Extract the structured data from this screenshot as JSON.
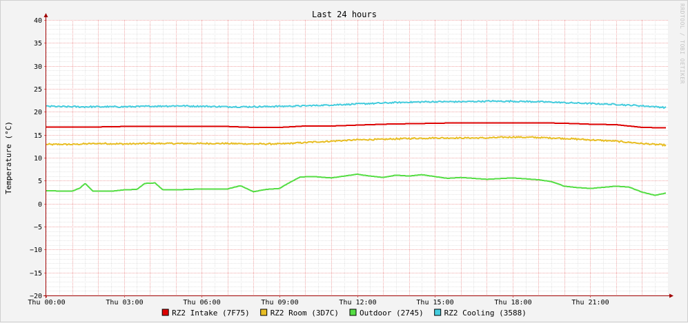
{
  "chart_data": {
    "type": "line",
    "title": "Last 24 hours",
    "ylabel": "Temperature (°C)",
    "watermark": "RRDTOOL / TOBI OETIKER",
    "ylim": [
      -20,
      40
    ],
    "yticks": [
      -20,
      -15,
      -10,
      -5,
      0,
      5,
      10,
      15,
      20,
      25,
      30,
      35,
      40
    ],
    "xlim": [
      0,
      24
    ],
    "xtick_labels": [
      "Thu 00:00",
      "Thu 03:00",
      "Thu 06:00",
      "Thu 09:00",
      "Thu 12:00",
      "Thu 15:00",
      "Thu 18:00",
      "Thu 21:00"
    ],
    "xtick_hours": [
      0,
      3,
      6,
      9,
      12,
      15,
      18,
      21
    ],
    "grid": true,
    "legend_position": "bottom",
    "series": [
      {
        "name": "RZ2 Intake (7F75)",
        "color": "#dd0000",
        "x": [
          0,
          1,
          2,
          3,
          4,
          5,
          6,
          7,
          8,
          9,
          10,
          11,
          12,
          13,
          14,
          15,
          16,
          17,
          18,
          19,
          20,
          21,
          22,
          23,
          24
        ],
        "y": [
          16.7,
          16.7,
          16.7,
          16.8,
          16.8,
          16.8,
          16.8,
          16.8,
          16.6,
          16.6,
          16.9,
          16.9,
          17.1,
          17.3,
          17.4,
          17.5,
          17.6,
          17.6,
          17.6,
          17.6,
          17.5,
          17.3,
          17.2,
          16.6,
          16.5
        ]
      },
      {
        "name": "RZ2 Room (3D7C)",
        "color": "#e8be25",
        "x": [
          0,
          1,
          2,
          3,
          4,
          5,
          6,
          7,
          8,
          9,
          10,
          11,
          12,
          13,
          14,
          15,
          16,
          17,
          18,
          19,
          20,
          21,
          22,
          23,
          24
        ],
        "y": [
          12.9,
          12.9,
          13.1,
          13.0,
          13.1,
          13.1,
          13.1,
          13.1,
          13.0,
          13.0,
          13.3,
          13.6,
          13.9,
          14.0,
          14.2,
          14.3,
          14.3,
          14.3,
          14.5,
          14.4,
          14.2,
          13.9,
          13.6,
          13.1,
          12.7
        ]
      },
      {
        "name": "Outdoor (2745)",
        "color": "#55dd44",
        "x": [
          0,
          1,
          1.3,
          1.5,
          1.8,
          2.5,
          3,
          3.5,
          3.8,
          4.2,
          4.5,
          5,
          6,
          7,
          7.5,
          8,
          8.5,
          9,
          9.3,
          9.8,
          10.3,
          11,
          11.5,
          12,
          12.5,
          13,
          13.5,
          14,
          14.5,
          15,
          15.5,
          16,
          17,
          18,
          19,
          19.5,
          20,
          20.5,
          21,
          22,
          22.5,
          23,
          23.5,
          24
        ],
        "y": [
          2.8,
          2.7,
          3.4,
          4.4,
          2.7,
          2.7,
          3.0,
          3.1,
          4.4,
          4.5,
          3.0,
          3.0,
          3.2,
          3.2,
          3.9,
          2.6,
          3.1,
          3.3,
          4.3,
          5.8,
          5.9,
          5.6,
          6.0,
          6.4,
          6.0,
          5.7,
          6.2,
          6.0,
          6.3,
          5.9,
          5.5,
          5.7,
          5.3,
          5.6,
          5.2,
          4.8,
          3.8,
          3.5,
          3.3,
          3.8,
          3.6,
          2.5,
          1.8,
          2.4
        ]
      },
      {
        "name": "RZ2 Cooling (3588)",
        "color": "#44ccdd",
        "x": [
          0,
          1,
          2,
          3,
          4,
          5,
          6,
          7,
          8,
          9,
          10,
          11,
          12,
          13,
          14,
          15,
          16,
          17,
          18,
          19,
          20,
          21,
          22,
          23,
          24
        ],
        "y": [
          21.2,
          21.1,
          21.1,
          21.1,
          21.2,
          21.3,
          21.2,
          21.1,
          21.1,
          21.2,
          21.3,
          21.5,
          21.7,
          21.9,
          22.1,
          22.2,
          22.2,
          22.3,
          22.3,
          22.2,
          22.0,
          21.8,
          21.6,
          21.3,
          20.9
        ]
      }
    ]
  }
}
